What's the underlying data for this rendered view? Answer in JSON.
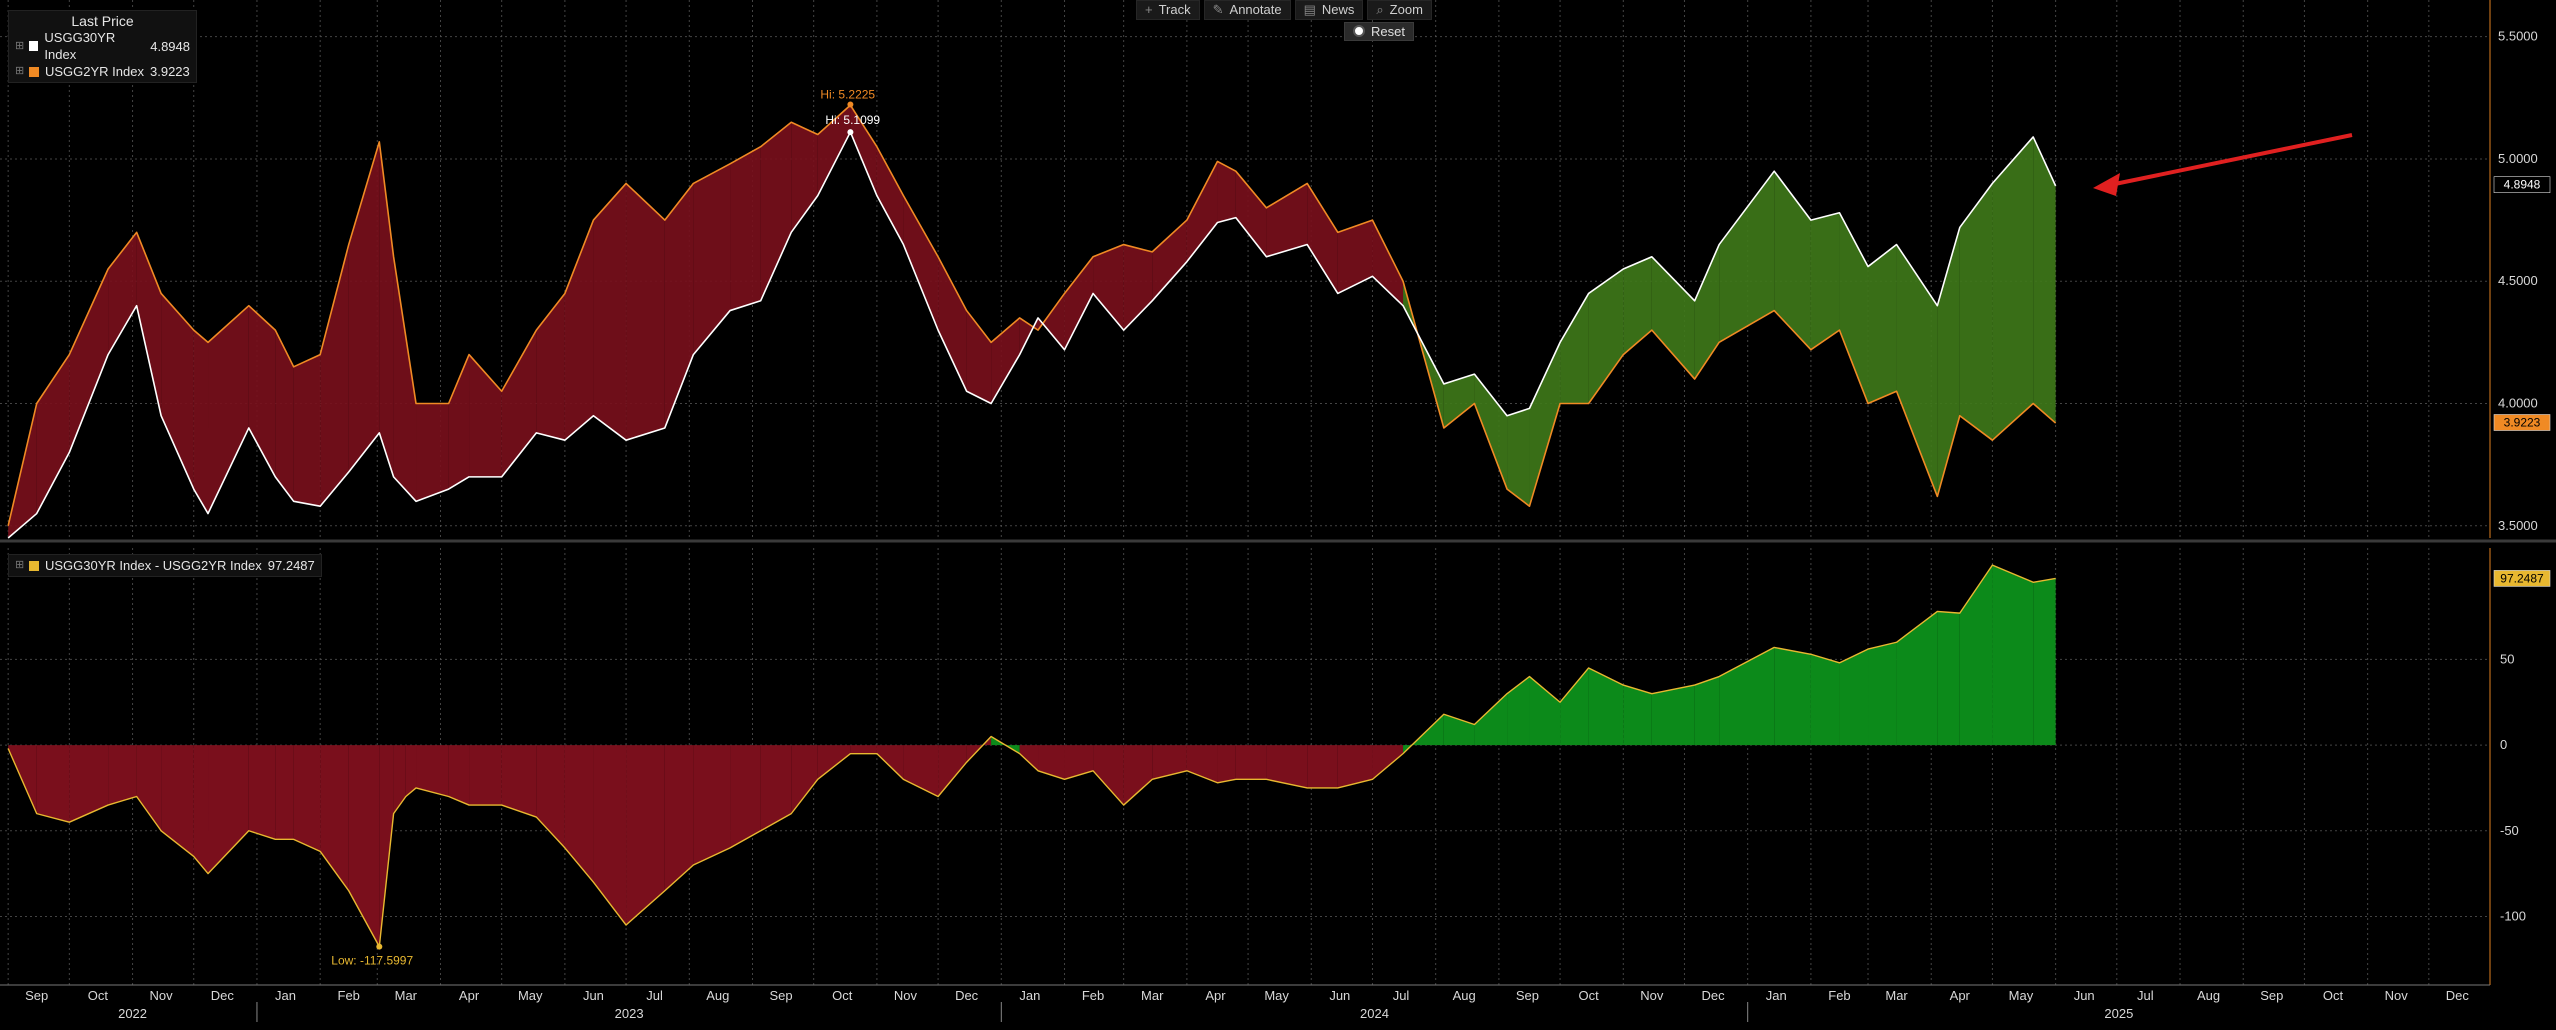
{
  "toolbar": {
    "track": "Track",
    "annotate": "Annotate",
    "news": "News",
    "zoom": "Zoom",
    "reset": "Reset"
  },
  "legend_top": {
    "title": "Last Price",
    "items": [
      {
        "label": "USGG30YR Index",
        "value": "4.8948",
        "color": "#ffffff"
      },
      {
        "label": "USGG2YR Index",
        "value": "3.9223",
        "color": "#f08a24"
      }
    ]
  },
  "legend_bottom": {
    "items": [
      {
        "label": "USGG30YR Index - USGG2YR Index",
        "value": "97.2487",
        "color": "#e8b830"
      }
    ]
  },
  "colors": {
    "line30": "#ffffff",
    "line2": "#f08a24",
    "spread": "#e8b830",
    "inverted_fill": "#7a0f1c",
    "normal_fill_top": "#3f7a1a",
    "normal_fill_bottom": "#1e6010",
    "spread_pos": "#0c8a1a",
    "spread_neg": "#7a0f1c",
    "arrow": "#e02020",
    "grid": "#555555"
  },
  "chart_data": [
    {
      "type": "line",
      "title": "",
      "xlabel": "",
      "ylabel": "",
      "x_start": "2022-09-01",
      "xlim": [
        "2022-08-28",
        "2025-12-31"
      ],
      "ylim": [
        3.45,
        5.65
      ],
      "yticks": [
        3.5,
        4.0,
        4.5,
        5.0,
        5.5
      ],
      "ytick_labels": [
        "3.5000",
        "4.0000",
        "4.5000",
        "5.0000",
        "5.5000"
      ],
      "grid": true,
      "legend_position": "top-left",
      "series": [
        {
          "name": "USGG30YR Index",
          "x": [
            "2022-09-01",
            "2022-09-15",
            "2022-10-01",
            "2022-10-20",
            "2022-11-03",
            "2022-11-15",
            "2022-12-01",
            "2022-12-08",
            "2022-12-28",
            "2023-01-10",
            "2023-01-19",
            "2023-02-01",
            "2023-02-15",
            "2023-03-02",
            "2023-03-09",
            "2023-03-20",
            "2023-04-05",
            "2023-04-15",
            "2023-05-01",
            "2023-05-18",
            "2023-06-01",
            "2023-06-15",
            "2023-07-01",
            "2023-07-20",
            "2023-08-03",
            "2023-08-21",
            "2023-09-05",
            "2023-09-20",
            "2023-10-03",
            "2023-10-19",
            "2023-11-01",
            "2023-11-14",
            "2023-12-01",
            "2023-12-15",
            "2023-12-27",
            "2024-01-10",
            "2024-01-19",
            "2024-02-01",
            "2024-02-15",
            "2024-03-01",
            "2024-03-15",
            "2024-04-01",
            "2024-04-16",
            "2024-04-25",
            "2024-05-10",
            "2024-05-30",
            "2024-06-14",
            "2024-07-01",
            "2024-07-16",
            "2024-08-05",
            "2024-08-20",
            "2024-09-05",
            "2024-09-16",
            "2024-10-01",
            "2024-10-15",
            "2024-11-01",
            "2024-11-15",
            "2024-12-06",
            "2024-12-18",
            "2025-01-14",
            "2025-02-01",
            "2025-02-15",
            "2025-03-01",
            "2025-03-15",
            "2025-04-04",
            "2025-04-15",
            "2025-05-01",
            "2025-05-21",
            "2025-06-01"
          ],
          "values": [
            3.45,
            3.55,
            3.8,
            4.2,
            4.4,
            3.95,
            3.65,
            3.55,
            3.9,
            3.7,
            3.6,
            3.58,
            3.72,
            3.88,
            3.7,
            3.6,
            3.65,
            3.7,
            3.7,
            3.88,
            3.85,
            3.95,
            3.85,
            3.9,
            4.2,
            4.38,
            4.42,
            4.7,
            4.85,
            5.11,
            4.85,
            4.65,
            4.3,
            4.05,
            4.0,
            4.2,
            4.35,
            4.22,
            4.45,
            4.3,
            4.42,
            4.58,
            4.74,
            4.76,
            4.6,
            4.65,
            4.45,
            4.52,
            4.4,
            4.08,
            4.12,
            3.95,
            3.98,
            4.25,
            4.45,
            4.55,
            4.6,
            4.42,
            4.65,
            4.95,
            4.75,
            4.78,
            4.56,
            4.65,
            4.4,
            4.72,
            4.9,
            5.09,
            4.89
          ]
        },
        {
          "name": "USGG2YR Index",
          "x": [
            "2022-09-01",
            "2022-09-15",
            "2022-10-01",
            "2022-10-20",
            "2022-11-03",
            "2022-11-15",
            "2022-12-01",
            "2022-12-08",
            "2022-12-28",
            "2023-01-10",
            "2023-01-19",
            "2023-02-01",
            "2023-02-15",
            "2023-03-02",
            "2023-03-09",
            "2023-03-20",
            "2023-04-05",
            "2023-04-15",
            "2023-05-01",
            "2023-05-18",
            "2023-06-01",
            "2023-06-15",
            "2023-07-01",
            "2023-07-20",
            "2023-08-03",
            "2023-08-21",
            "2023-09-05",
            "2023-09-20",
            "2023-10-03",
            "2023-10-19",
            "2023-11-01",
            "2023-11-14",
            "2023-12-01",
            "2023-12-15",
            "2023-12-27",
            "2024-01-10",
            "2024-01-19",
            "2024-02-01",
            "2024-02-15",
            "2024-03-01",
            "2024-03-15",
            "2024-04-01",
            "2024-04-16",
            "2024-04-25",
            "2024-05-10",
            "2024-05-30",
            "2024-06-14",
            "2024-07-01",
            "2024-07-16",
            "2024-08-05",
            "2024-08-20",
            "2024-09-05",
            "2024-09-16",
            "2024-10-01",
            "2024-10-15",
            "2024-11-01",
            "2024-11-15",
            "2024-12-06",
            "2024-12-18",
            "2025-01-14",
            "2025-02-01",
            "2025-02-15",
            "2025-03-01",
            "2025-03-15",
            "2025-04-04",
            "2025-04-15",
            "2025-05-01",
            "2025-05-21",
            "2025-06-01"
          ],
          "values": [
            3.5,
            4.0,
            4.2,
            4.55,
            4.7,
            4.45,
            4.3,
            4.25,
            4.4,
            4.3,
            4.15,
            4.2,
            4.65,
            5.07,
            4.6,
            4.0,
            4.0,
            4.2,
            4.05,
            4.3,
            4.45,
            4.75,
            4.9,
            4.75,
            4.9,
            4.98,
            5.05,
            5.15,
            5.1,
            5.22,
            5.05,
            4.85,
            4.6,
            4.38,
            4.25,
            4.35,
            4.3,
            4.45,
            4.6,
            4.65,
            4.62,
            4.75,
            4.99,
            4.95,
            4.8,
            4.9,
            4.7,
            4.75,
            4.5,
            3.9,
            4.0,
            3.65,
            3.58,
            4.0,
            4.0,
            4.2,
            4.3,
            4.1,
            4.25,
            4.38,
            4.22,
            4.3,
            4.0,
            4.05,
            3.62,
            3.95,
            3.85,
            4.0,
            3.92
          ]
        }
      ],
      "annotations": [
        {
          "text": "Hi: 5.2225",
          "x": "2023-10-19",
          "y": 5.2225,
          "series": "USGG2YR Index"
        },
        {
          "text": "Hi: 5.1099",
          "x": "2023-10-19",
          "y": 5.1099,
          "series": "USGG30YR Index"
        }
      ],
      "last_labels": [
        {
          "text": "4.8948",
          "y": 4.8948
        },
        {
          "text": "3.9223",
          "y": 3.9223
        }
      ]
    },
    {
      "type": "area",
      "title": "",
      "xlabel": "",
      "ylabel": "",
      "xlim": [
        "2022-08-28",
        "2025-12-31"
      ],
      "ylim": [
        -140,
        115
      ],
      "yticks": [
        -100,
        -50,
        0,
        50
      ],
      "ytick_labels": [
        "-100",
        "-50",
        "0",
        "50"
      ],
      "grid": true,
      "series": [
        {
          "name": "USGG30YR Index - USGG2YR Index",
          "x": [
            "2022-09-01",
            "2022-09-15",
            "2022-10-01",
            "2022-10-20",
            "2022-11-03",
            "2022-11-15",
            "2022-12-01",
            "2022-12-08",
            "2022-12-28",
            "2023-01-10",
            "2023-01-19",
            "2023-02-01",
            "2023-02-15",
            "2023-03-02",
            "2023-03-09",
            "2023-03-15",
            "2023-03-20",
            "2023-04-05",
            "2023-04-15",
            "2023-05-01",
            "2023-05-18",
            "2023-06-01",
            "2023-06-15",
            "2023-07-01",
            "2023-07-20",
            "2023-08-03",
            "2023-08-21",
            "2023-09-05",
            "2023-09-20",
            "2023-10-03",
            "2023-10-19",
            "2023-11-01",
            "2023-11-14",
            "2023-12-01",
            "2023-12-15",
            "2023-12-27",
            "2024-01-10",
            "2024-01-19",
            "2024-02-01",
            "2024-02-15",
            "2024-03-01",
            "2024-03-15",
            "2024-04-01",
            "2024-04-16",
            "2024-04-25",
            "2024-05-10",
            "2024-05-30",
            "2024-06-14",
            "2024-07-01",
            "2024-07-16",
            "2024-08-05",
            "2024-08-20",
            "2024-09-05",
            "2024-09-16",
            "2024-10-01",
            "2024-10-15",
            "2024-11-01",
            "2024-11-15",
            "2024-12-06",
            "2024-12-18",
            "2025-01-14",
            "2025-02-01",
            "2025-02-15",
            "2025-03-01",
            "2025-03-15",
            "2025-04-04",
            "2025-04-15",
            "2025-05-01",
            "2025-05-21",
            "2025-06-01"
          ],
          "values": [
            -2,
            -40,
            -45,
            -35,
            -30,
            -50,
            -65,
            -75,
            -50,
            -55,
            -55,
            -62,
            -85,
            -117.6,
            -40,
            -30,
            -25,
            -30,
            -35,
            -35,
            -42,
            -60,
            -80,
            -105,
            -85,
            -70,
            -60,
            -50,
            -40,
            -20,
            -5,
            -5,
            -20,
            -30,
            -10,
            5,
            -5,
            -15,
            -20,
            -15,
            -35,
            -20,
            -15,
            -22,
            -20,
            -20,
            -25,
            -25,
            -20,
            -5,
            18,
            12,
            30,
            40,
            25,
            45,
            35,
            30,
            35,
            40,
            57,
            53,
            48,
            56,
            60,
            78,
            77,
            105,
            95,
            97.2487
          ]
        }
      ],
      "annotations": [
        {
          "text": "Low: -117.5997",
          "x": "2023-03-02",
          "y": -117.5997
        }
      ],
      "last_labels": [
        {
          "text": "97.2487",
          "y": 97.2487
        }
      ]
    }
  ],
  "x_axis": {
    "month_labels": [
      "Sep",
      "Oct",
      "Nov",
      "Dec",
      "Jan",
      "Feb",
      "Mar",
      "Apr",
      "May",
      "Jun",
      "Jul",
      "Aug",
      "Sep",
      "Oct",
      "Nov",
      "Dec",
      "Jan",
      "Feb",
      "Mar",
      "Apr",
      "May",
      "Jun",
      "Jul",
      "Aug",
      "Sep",
      "Oct",
      "Nov",
      "Dec",
      "Jan",
      "Feb",
      "Mar",
      "Apr",
      "May",
      "Jun",
      "Jul",
      "Aug",
      "Sep",
      "Oct",
      "Nov",
      "Dec"
    ],
    "year_labels": [
      "2022",
      "2023",
      "2024",
      "2025"
    ]
  }
}
